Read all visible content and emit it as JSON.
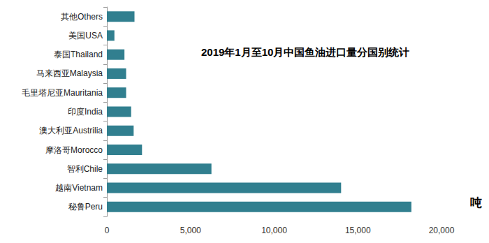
{
  "chart_data": {
    "type": "bar",
    "orientation": "horizontal",
    "title": "2019年1月至10月中国鱼油进口量分国别统计",
    "xlabel": "吨",
    "categories": [
      "其他Others",
      "美国USA",
      "泰国Thailand",
      "马来西亚Malaysia",
      "毛里塔尼亚Mauritania",
      "印度India",
      "澳大利亚Austrilia",
      "摩洛哥Morocco",
      "智利Chile",
      "越南Vietnam",
      "秘鲁Peru"
    ],
    "values": [
      1650,
      450,
      1050,
      1150,
      1150,
      1450,
      1600,
      2100,
      6250,
      14000,
      18200
    ],
    "color": "#317f8f",
    "xlim": [
      0,
      20000
    ],
    "xticks": [
      0,
      {
        "value": 5000,
        "label": "5,000"
      },
      {
        "value": 10000,
        "label": "10,000"
      },
      {
        "value": 15000,
        "label": "15,000"
      },
      {
        "value": 20000,
        "label": "20,000"
      }
    ],
    "grid": false,
    "data_labels": false
  }
}
